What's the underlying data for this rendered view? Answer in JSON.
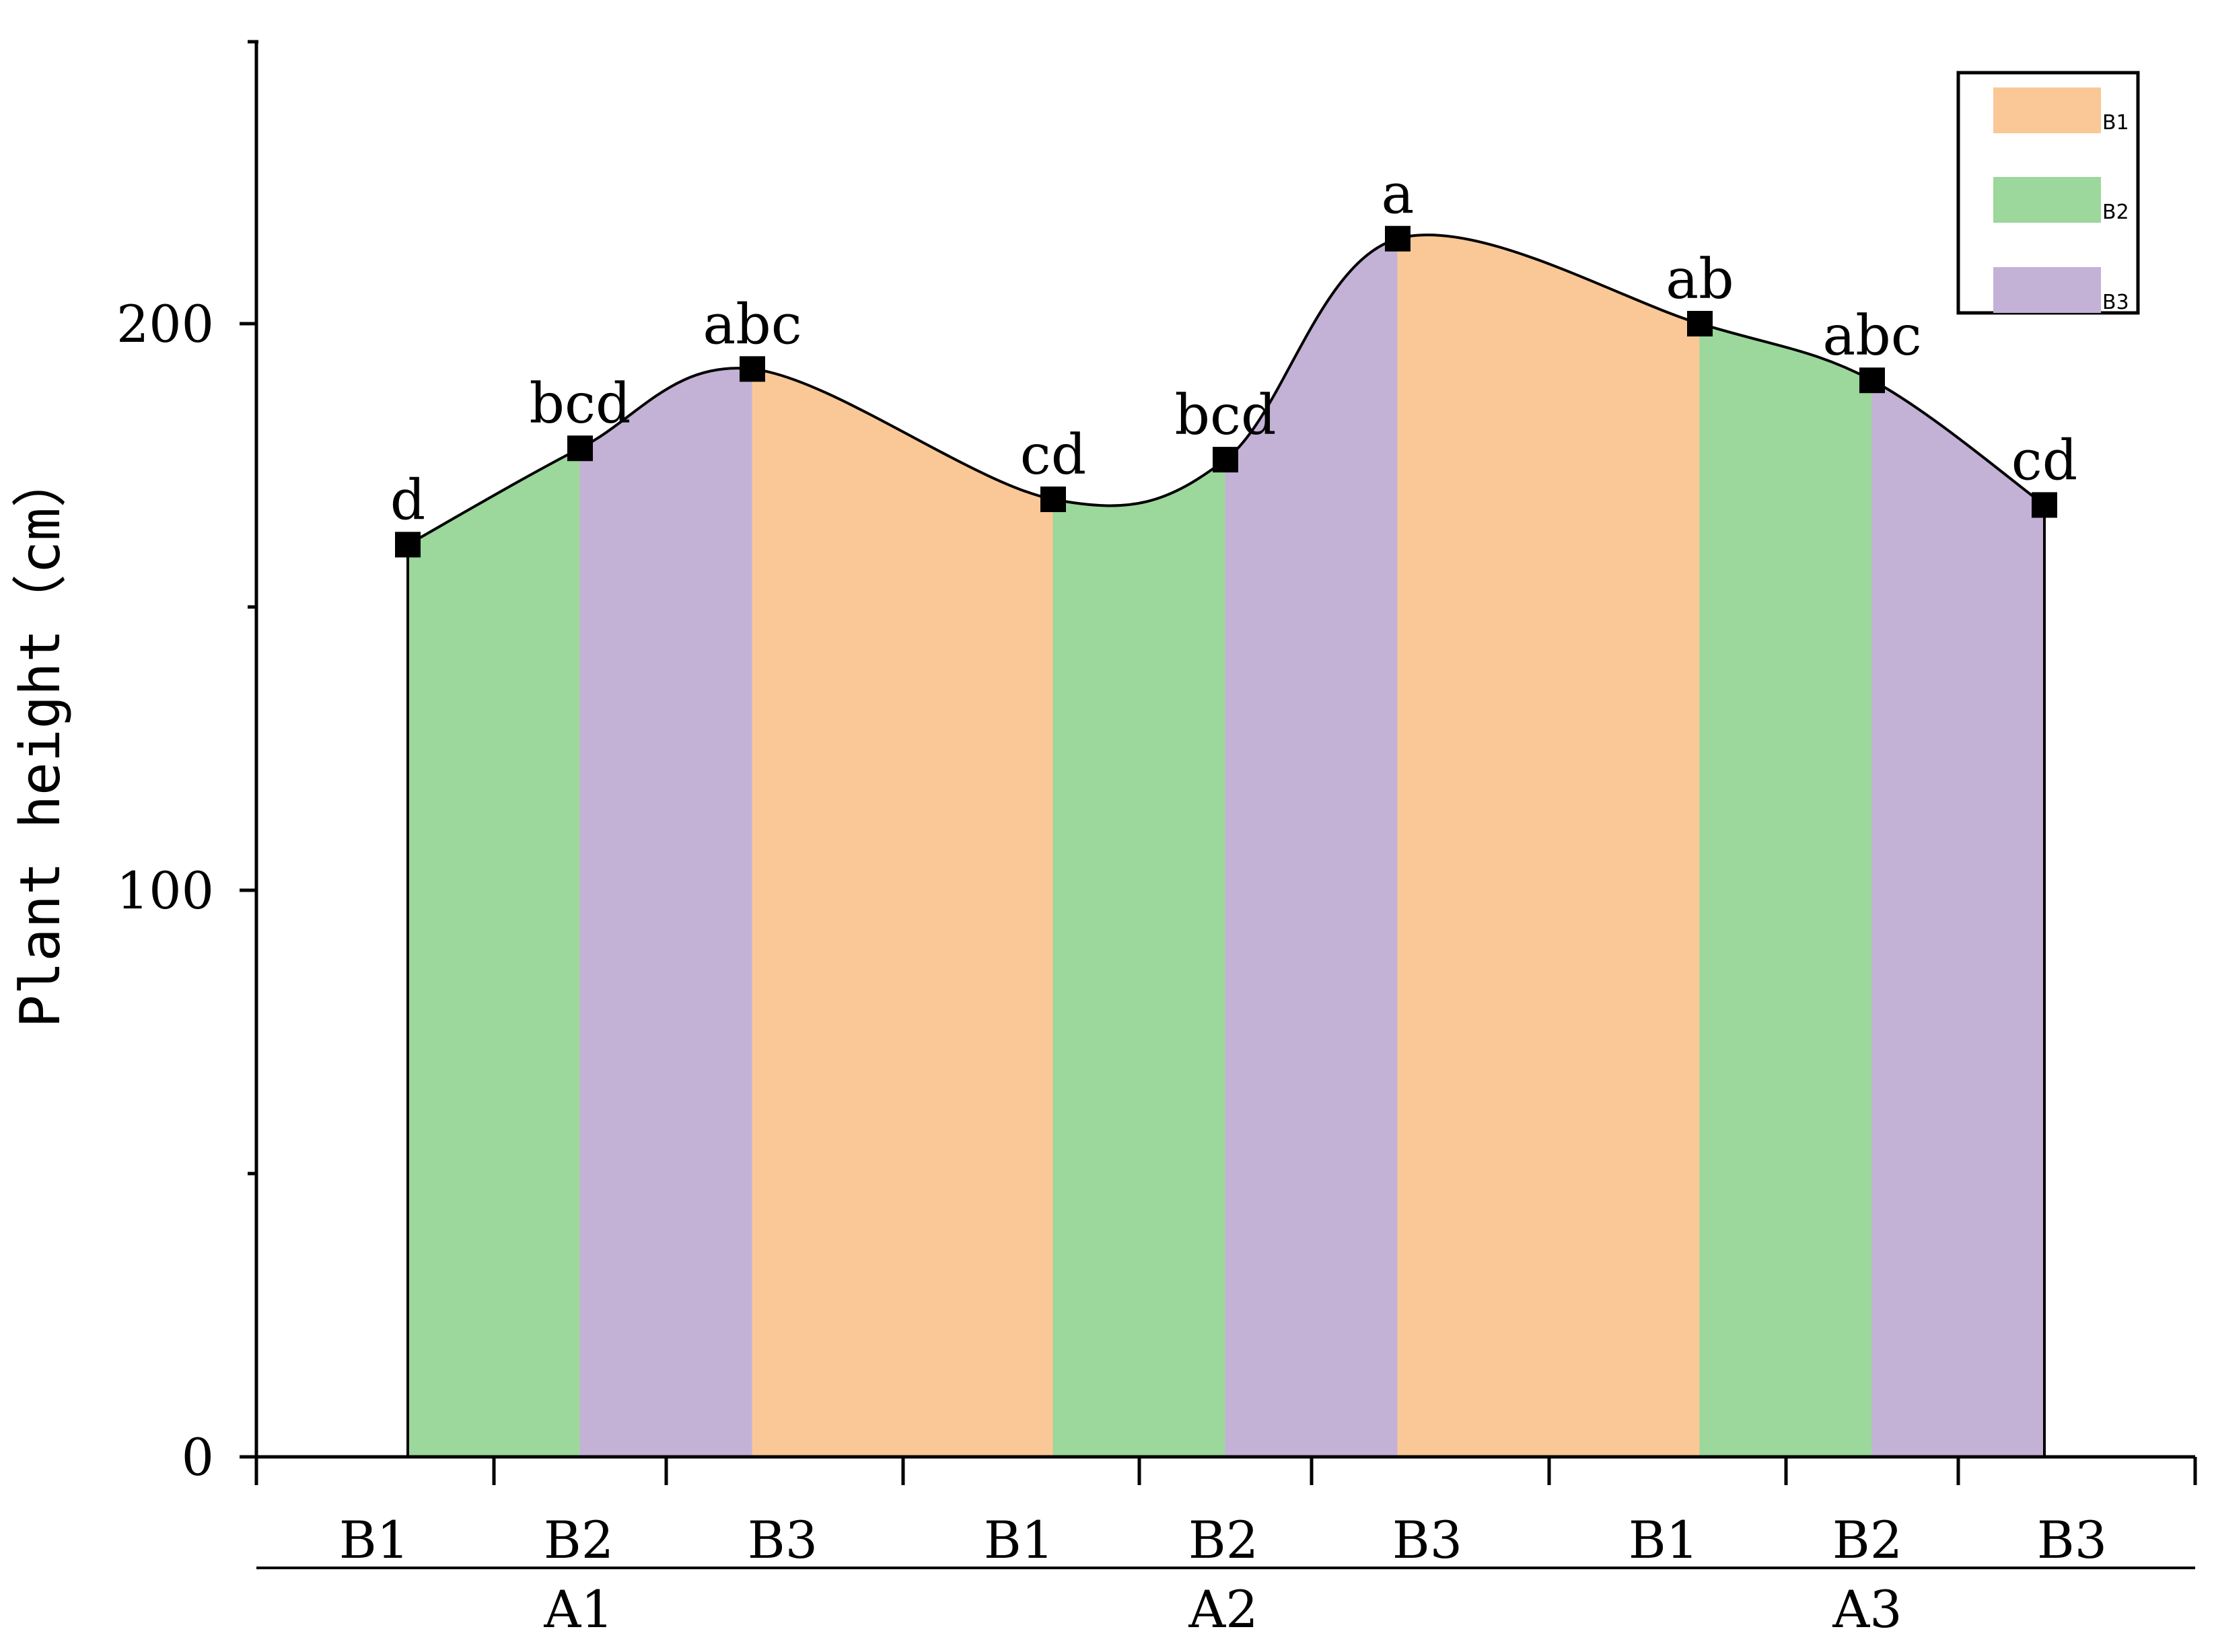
{
  "chart_data": {
    "type": "area",
    "ylabel": "Plant height（cm）",
    "ylim": [
      0,
      250
    ],
    "yticks": [
      "0",
      "100",
      "200"
    ],
    "groups": [
      {
        "label": "A1",
        "categories": [
          "B1",
          "B2",
          "B3"
        ]
      },
      {
        "label": "A2",
        "categories": [
          "B1",
          "B2",
          "B3"
        ]
      },
      {
        "label": "A3",
        "categories": [
          "B1",
          "B2",
          "B3"
        ]
      }
    ],
    "points": [
      {
        "group": "A1",
        "category": "B1",
        "value": 161,
        "letter": "d"
      },
      {
        "group": "A1",
        "category": "B2",
        "value": 178,
        "letter": "bcd"
      },
      {
        "group": "A1",
        "category": "B3",
        "value": 192,
        "letter": "abc"
      },
      {
        "group": "A2",
        "category": "B1",
        "value": 169,
        "letter": "cd"
      },
      {
        "group": "A2",
        "category": "B2",
        "value": 176,
        "letter": "bcd"
      },
      {
        "group": "A2",
        "category": "B3",
        "value": 215,
        "letter": "a"
      },
      {
        "group": "A3",
        "category": "B1",
        "value": 200,
        "letter": "ab"
      },
      {
        "group": "A3",
        "category": "B2",
        "value": 190,
        "letter": "abc"
      },
      {
        "group": "A3",
        "category": "B3",
        "value": 168,
        "letter": "cd"
      }
    ],
    "legend": {
      "position": "top-right",
      "entries": [
        {
          "name": "B1",
          "color": "#f9c896"
        },
        {
          "name": "B2",
          "color": "#9cd79b"
        },
        {
          "name": "B3",
          "color": "#c3b1d6"
        }
      ]
    },
    "line_color": "#000000",
    "marker": "square",
    "grid": false
  }
}
